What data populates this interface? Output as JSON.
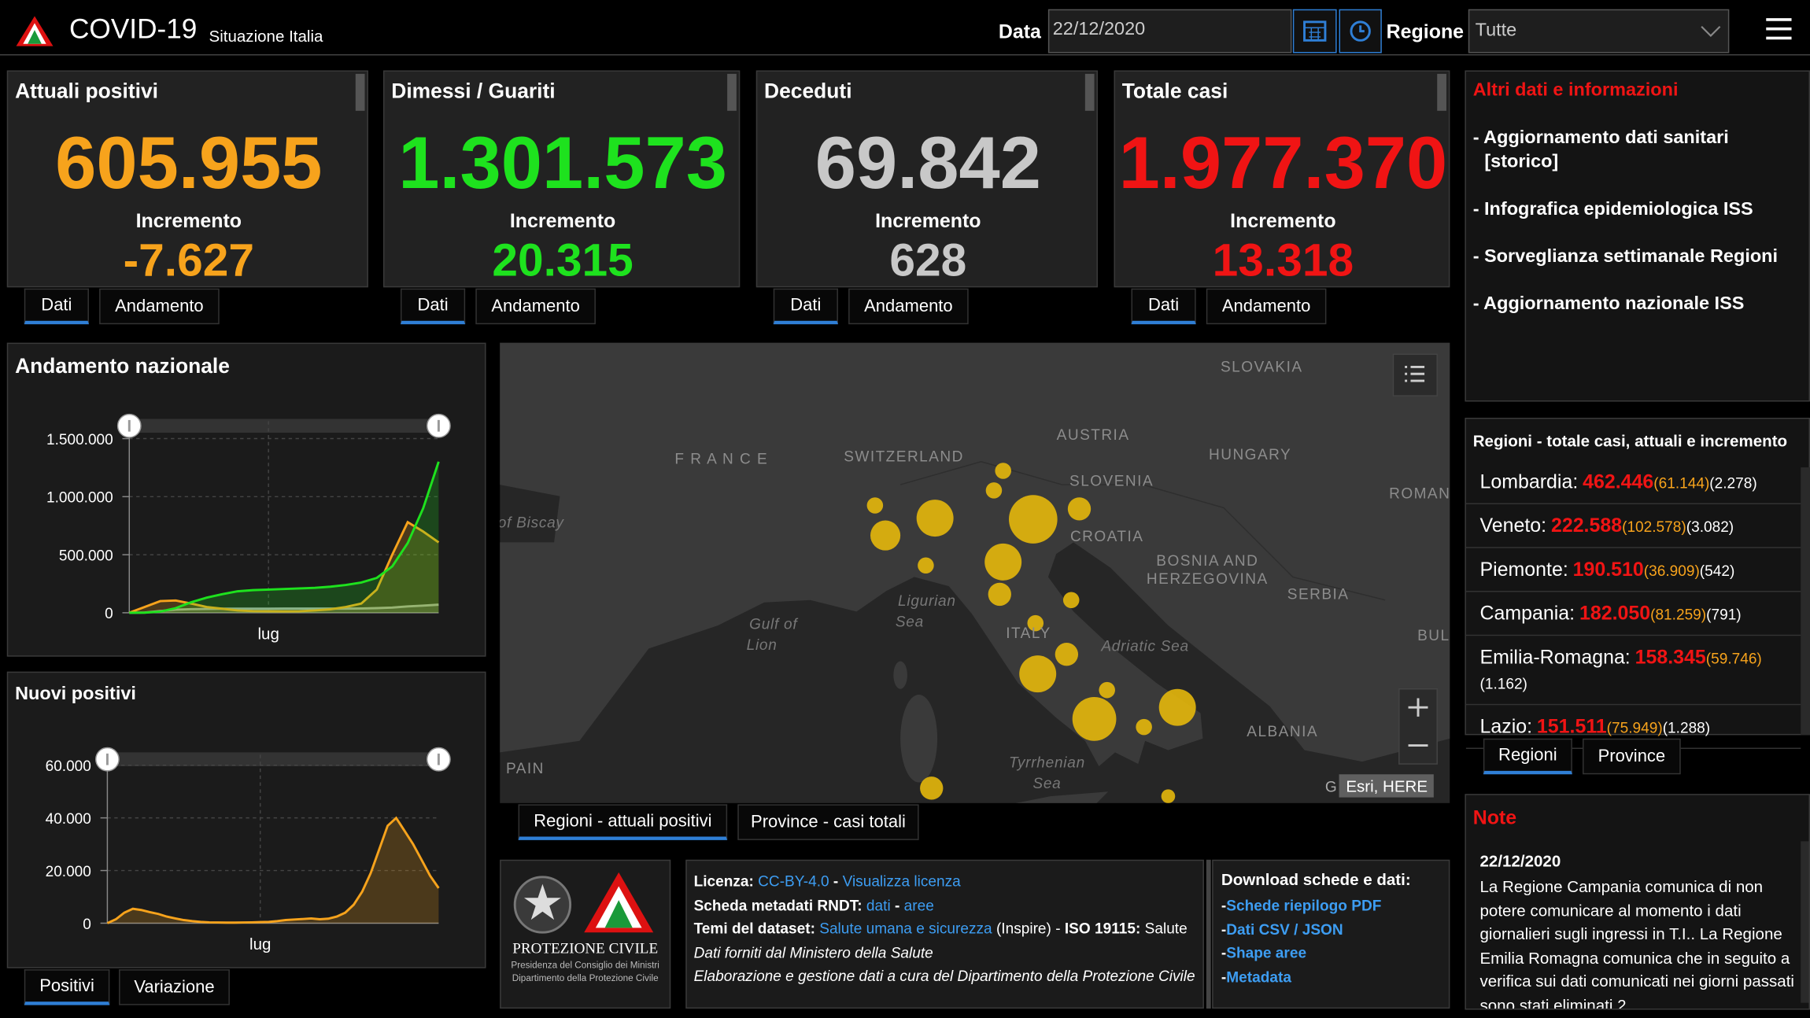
{
  "header": {
    "title": "COVID-19",
    "subtitle": "Situazione Italia",
    "date_label": "Data",
    "date_value": "22/12/2020",
    "region_label": "Regione",
    "region_value": "Tutte"
  },
  "cards": [
    {
      "title": "Attuali positivi",
      "value": "605.955",
      "increment_label": "Incremento",
      "increment": "-7.627",
      "color": "#f7a31c",
      "tabs": [
        "Dati",
        "Andamento"
      ]
    },
    {
      "title": "Dimessi / Guariti",
      "value": "1.301.573",
      "increment_label": "Incremento",
      "increment": "20.315",
      "color": "#1ee21e",
      "tabs": [
        "Dati",
        "Andamento"
      ]
    },
    {
      "title": "Deceduti",
      "value": "69.842",
      "increment_label": "Incremento",
      "increment": "628",
      "color": "#c8c8c8",
      "tabs": [
        "Dati",
        "Andamento"
      ]
    },
    {
      "title": "Totale casi",
      "value": "1.977.370",
      "increment_label": "Incremento",
      "increment": "13.318",
      "color": "#f01414",
      "tabs": [
        "Dati",
        "Andamento"
      ]
    }
  ],
  "links_panel": {
    "title": "Altri dati e informazioni",
    "items": [
      "- Aggiornamento dati sanitari [storico]",
      "- Infografica epidemiologica ISS",
      "- Sorveglianza settimanale Regioni",
      "- Aggiornamento nazionale ISS"
    ]
  },
  "national_chart": {
    "type": "line",
    "title": "Andamento nazionale",
    "categories": [
      null,
      null,
      null,
      null,
      null,
      null,
      null,
      null,
      null,
      "lug",
      null,
      null,
      null,
      null,
      null,
      null,
      null,
      null,
      null,
      null,
      null
    ],
    "series": [
      {
        "color": "#a8a8a8",
        "values": [
          0,
          2000,
          15000,
          27000,
          31000,
          33000,
          34500,
          35000,
          35100,
          35200,
          35400,
          35500,
          35600,
          35800,
          36000,
          37000,
          40000,
          45000,
          55000,
          62000,
          69842
        ]
      },
      {
        "color": "#f7a31c",
        "values": [
          0,
          50000,
          100000,
          105000,
          80000,
          50000,
          35000,
          20000,
          14000,
          12500,
          12000,
          13000,
          20000,
          30000,
          50000,
          80000,
          200000,
          500000,
          780000,
          700000,
          605955
        ]
      },
      {
        "color": "#1ee21e",
        "values": [
          0,
          1000,
          10000,
          40000,
          90000,
          130000,
          160000,
          185000,
          195000,
          200000,
          205000,
          210000,
          215000,
          225000,
          240000,
          260000,
          300000,
          400000,
          600000,
          900000,
          1301573
        ]
      }
    ],
    "ylim": [
      0,
      1650000
    ],
    "yticks": [
      0,
      {
        "value": 500000,
        "label": "500.000"
      },
      {
        "value": 1000000,
        "label": "1.000.000"
      },
      {
        "value": 1500000,
        "label": "1.500.000"
      }
    ],
    "grid": true
  },
  "new_positives_chart": {
    "type": "line",
    "title": "Nuovi positivi",
    "categories": [
      null,
      null,
      null,
      null,
      null,
      null,
      null,
      null,
      null,
      null,
      null,
      null,
      null,
      null,
      null,
      null,
      null,
      null,
      "lug",
      null,
      null,
      null,
      null,
      null,
      null,
      null,
      null,
      null,
      null,
      null,
      null,
      null,
      null,
      null,
      null,
      null,
      null,
      null,
      null,
      null
    ],
    "series": [
      {
        "color": "#f7a31c",
        "values": [
          0,
          1500,
          4000,
          5500,
          5000,
          4200,
          3500,
          2500,
          1800,
          1200,
          800,
          500,
          300,
          250,
          200,
          200,
          250,
          300,
          400,
          500,
          800,
          1200,
          1400,
          1600,
          1800,
          1500,
          1700,
          2500,
          4000,
          7000,
          12000,
          19000,
          28000,
          37000,
          40000,
          35000,
          30000,
          24000,
          18000,
          13318
        ]
      }
    ],
    "ylim": [
      0,
      64000
    ],
    "yticks": [
      0,
      {
        "value": 20000,
        "label": "20.000"
      },
      {
        "value": 40000,
        "label": "40.000"
      },
      {
        "value": 60000,
        "label": "60.000"
      }
    ],
    "grid": true,
    "tabs": [
      "Positivi",
      "Variazione"
    ]
  },
  "map": {
    "labels": [
      "SLOVAKIA",
      "F R A N C E",
      "SWITZERLAND",
      "AUSTRIA",
      "HUNGARY",
      "SLOVENIA",
      "ROMAN",
      "of Biscay",
      "CROATIA",
      "BOSNIA AND",
      "HERZEGOVINA",
      "SERBIA",
      "Ligurian",
      "Sea",
      "Gulf of",
      "Lion",
      "ITALY",
      "Adriatic Sea",
      "BUL",
      "ALBANIA",
      "PAIN",
      "Tyrrhenian",
      "Sea"
    ],
    "attribution_prefix": "G",
    "attribution": "Esri, HERE",
    "tabs": [
      "Regioni - attuali positivi",
      "Province - casi totali"
    ]
  },
  "regions": {
    "title": "Regioni - totale casi, attuali e incremento",
    "rows": [
      {
        "name": "Lombardia:",
        "total": "462.446",
        "current": "(61.144)",
        "increment": "(2.278)"
      },
      {
        "name": "Veneto:",
        "total": "222.588",
        "current": "(102.578)",
        "increment": "(3.082)"
      },
      {
        "name": "Piemonte:",
        "total": "190.510",
        "current": "(36.909)",
        "increment": "(542)"
      },
      {
        "name": "Campania:",
        "total": "182.050",
        "current": "(81.259)",
        "increment": "(791)"
      },
      {
        "name": "Emilia-Romagna:",
        "total": "158.345",
        "current": "(59.746)",
        "increment": "(1.162)"
      },
      {
        "name": "Lazio:",
        "total": "151.511",
        "current": "(75.949)",
        "increment": "(1.288)"
      }
    ],
    "tabs": [
      "Regioni",
      "Province"
    ]
  },
  "logo": {
    "line1": "PROTEZIONE CIVILE",
    "line2": "Presidenza del Consiglio dei Ministri",
    "line3": "Dipartimento della Protezione Civile"
  },
  "license": {
    "lines": [
      [
        {
          "text": "Licenza: ",
          "style": "bold"
        },
        {
          "text": "CC-BY-4.0",
          "style": "link"
        },
        {
          "text": " - ",
          "style": "bold"
        },
        {
          "text": "Visualizza licenza",
          "style": "link"
        }
      ],
      [
        {
          "text": "Scheda metadati RNDT: ",
          "style": "bold"
        },
        {
          "text": "dati",
          "style": "link"
        },
        {
          "text": " - ",
          "style": "bold"
        },
        {
          "text": "aree",
          "style": "link"
        }
      ],
      [
        {
          "text": "Temi del dataset: ",
          "style": "bold"
        },
        {
          "text": "Salute umana e sicurezza",
          "style": "link"
        },
        {
          "text": " (Inspire) - ",
          "style": "plain"
        },
        {
          "text": "ISO 19115:",
          "style": "bold"
        },
        {
          "text": " Salute",
          "style": "plain"
        }
      ],
      [
        {
          "text": "Dati forniti dal Ministero della Salute",
          "style": "italic"
        }
      ],
      [
        {
          "text": "Elaborazione e gestione dati a cura del Dipartimento della Protezione Civile",
          "style": "italic"
        }
      ]
    ]
  },
  "downloads": {
    "title": "Download schede e dati:",
    "items": [
      {
        "bullet": "-",
        "text": "Schede riepilogo PDF"
      },
      {
        "bullet": "-",
        "text": "Dati CSV / JSON"
      },
      {
        "bullet": "-",
        "text": "Shape aree"
      },
      {
        "bullet": "-",
        "text": "Metadata"
      }
    ]
  },
  "note": {
    "title": "Note",
    "date": "22/12/2020",
    "text": "La Regione Campania comunica di non potere comunicare al momento i dati giornalieri sugli ingressi in T.I.. La Regione Emilia Romagna comunica che in seguito a verifica sui dati comunicati nei giorni passati sono stati eliminati 2"
  }
}
